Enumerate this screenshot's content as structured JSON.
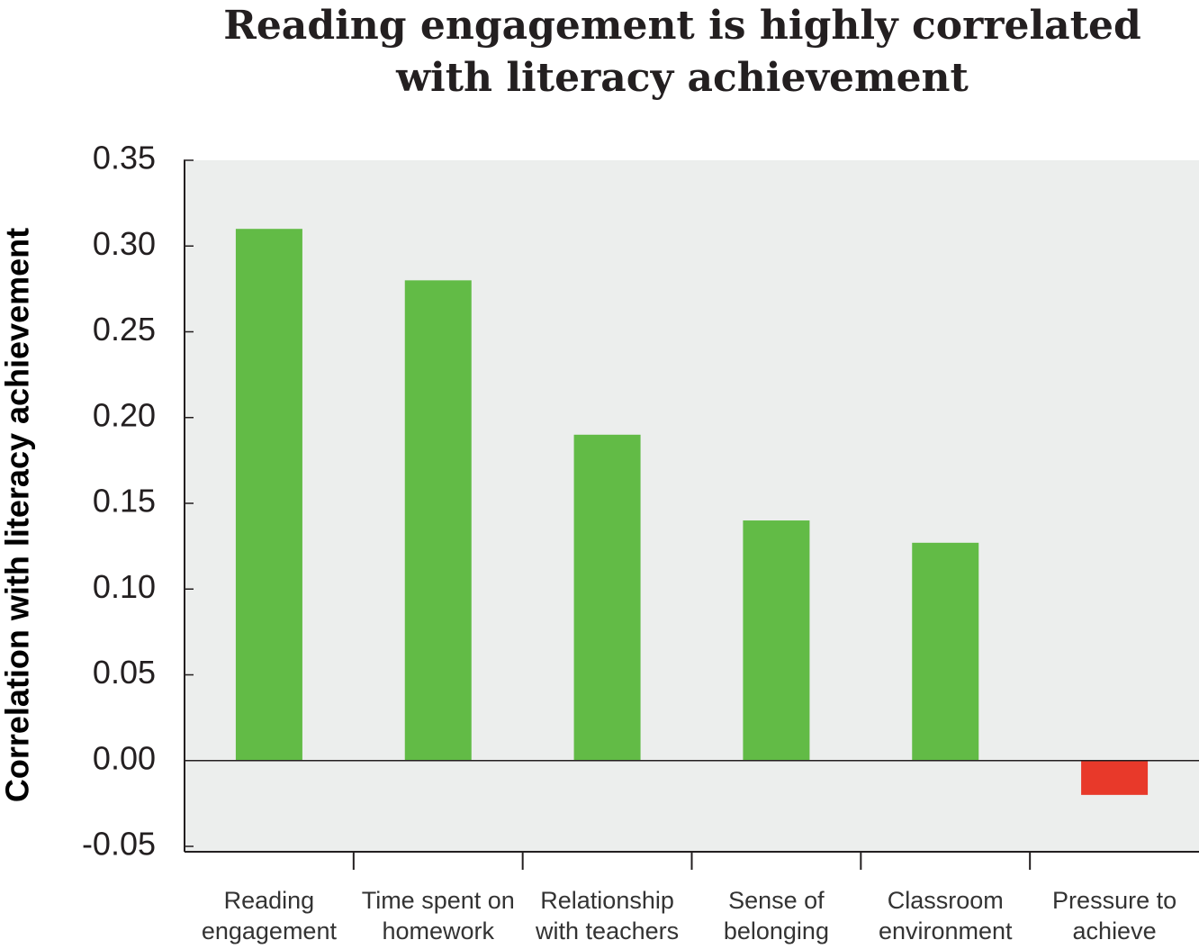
{
  "chart_data": {
    "type": "bar",
    "title": "Reading engagement is highly correlated with literacy achievement",
    "y_label": "Correlation with literacy achievement",
    "categories": [
      "Reading engagement",
      "Time spent on homework",
      "Relationship with teachers",
      "Sense of belonging",
      "Classroom environment",
      "Pressure to achieve"
    ],
    "values": [
      0.31,
      0.28,
      0.19,
      0.14,
      0.127,
      -0.02
    ],
    "colors": [
      "#62bb46",
      "#62bb46",
      "#62bb46",
      "#62bb46",
      "#62bb46",
      "#e8392a"
    ],
    "ylim": [
      -0.05,
      0.35
    ],
    "yticks": [
      -0.05,
      {
        "value": 0,
        "label": "0.00"
      },
      0.05,
      {
        "value": 0.1,
        "label": "0.10"
      },
      0.15,
      {
        "value": 0.2,
        "label": "0.20"
      },
      0.25,
      {
        "value": 0.3,
        "label": "0.30"
      },
      0.35
    ],
    "background": "#eceeed"
  }
}
